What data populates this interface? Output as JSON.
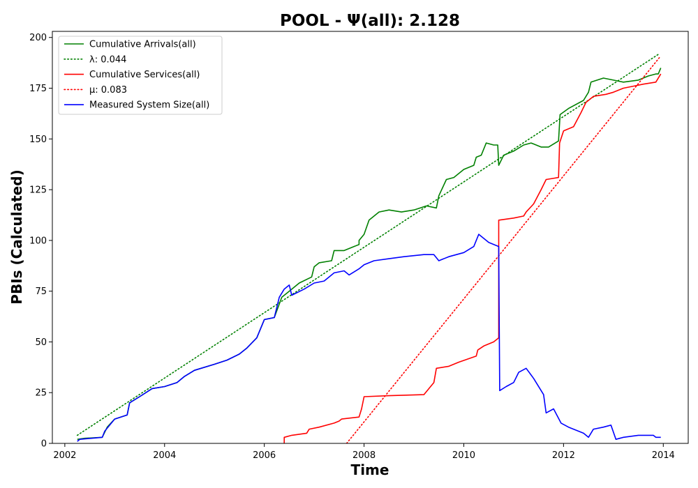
{
  "chart_data": {
    "type": "line",
    "title": "POOL -  Ψ(all): 2.128",
    "xlabel": "Time",
    "ylabel": "PBIs (Calculated)",
    "xlim": [
      2001.75,
      2014.5
    ],
    "ylim": [
      0,
      203
    ],
    "xticks": [
      "2002",
      "2004",
      "2006",
      "2008",
      "2010",
      "2012",
      "2014"
    ],
    "yticks": [
      "0",
      "25",
      "50",
      "75",
      "100",
      "125",
      "150",
      "175",
      "200"
    ],
    "grid": false,
    "legend_position": "top-left",
    "series": [
      {
        "name": "Cumulative Arrivals(all)",
        "style": "solid",
        "color": "#008000",
        "points": [
          [
            2002.25,
            2
          ],
          [
            2002.4,
            2.5
          ],
          [
            2002.75,
            3
          ],
          [
            2002.85,
            8
          ],
          [
            2003.0,
            12
          ],
          [
            2003.25,
            14
          ],
          [
            2003.3,
            20
          ],
          [
            2003.5,
            23
          ],
          [
            2003.75,
            27
          ],
          [
            2004.0,
            28
          ],
          [
            2004.25,
            30
          ],
          [
            2004.4,
            33
          ],
          [
            2004.6,
            36
          ],
          [
            2005.0,
            39
          ],
          [
            2005.25,
            41
          ],
          [
            2005.5,
            44
          ],
          [
            2005.65,
            47
          ],
          [
            2005.85,
            52
          ],
          [
            2006.0,
            61
          ],
          [
            2006.2,
            62
          ],
          [
            2006.35,
            72
          ],
          [
            2006.5,
            75
          ],
          [
            2006.7,
            79
          ],
          [
            2006.95,
            82
          ],
          [
            2007.0,
            87
          ],
          [
            2007.1,
            89
          ],
          [
            2007.35,
            90
          ],
          [
            2007.4,
            95
          ],
          [
            2007.6,
            95
          ],
          [
            2007.9,
            98
          ],
          [
            2007.9,
            100
          ],
          [
            2008.0,
            103
          ],
          [
            2008.1,
            110
          ],
          [
            2008.3,
            114
          ],
          [
            2008.5,
            115
          ],
          [
            2008.75,
            114
          ],
          [
            2009.0,
            115
          ],
          [
            2009.25,
            117
          ],
          [
            2009.45,
            116
          ],
          [
            2009.5,
            122
          ],
          [
            2009.65,
            130
          ],
          [
            2009.8,
            131
          ],
          [
            2010.0,
            135
          ],
          [
            2010.2,
            137
          ],
          [
            2010.25,
            141
          ],
          [
            2010.35,
            142
          ],
          [
            2010.45,
            148
          ],
          [
            2010.6,
            147
          ],
          [
            2010.68,
            147
          ],
          [
            2010.7,
            137
          ],
          [
            2010.8,
            142
          ],
          [
            2011.0,
            144
          ],
          [
            2011.2,
            147
          ],
          [
            2011.35,
            148
          ],
          [
            2011.55,
            146
          ],
          [
            2011.7,
            146
          ],
          [
            2011.9,
            149
          ],
          [
            2011.93,
            162
          ],
          [
            2012.1,
            165
          ],
          [
            2012.4,
            169
          ],
          [
            2012.5,
            173
          ],
          [
            2012.55,
            178
          ],
          [
            2012.8,
            180
          ],
          [
            2013.0,
            179
          ],
          [
            2013.2,
            178
          ],
          [
            2013.5,
            179
          ],
          [
            2013.7,
            181
          ],
          [
            2013.85,
            182
          ],
          [
            2013.9,
            182
          ],
          [
            2013.95,
            185
          ]
        ]
      },
      {
        "name": "λ: 0.044",
        "style": "dotted",
        "color": "#008000",
        "points": [
          [
            2002.25,
            4
          ],
          [
            2013.92,
            192
          ]
        ]
      },
      {
        "name": "Cumulative Services(all)",
        "style": "solid",
        "color": "#ff0000",
        "points": [
          [
            2006.4,
            0
          ],
          [
            2006.4,
            3
          ],
          [
            2006.55,
            4
          ],
          [
            2006.85,
            5
          ],
          [
            2006.9,
            7
          ],
          [
            2007.1,
            8
          ],
          [
            2007.4,
            10
          ],
          [
            2007.5,
            11
          ],
          [
            2007.55,
            12
          ],
          [
            2007.9,
            13
          ],
          [
            2007.95,
            17
          ],
          [
            2008.0,
            23
          ],
          [
            2008.5,
            23.5
          ],
          [
            2009.2,
            24
          ],
          [
            2009.3,
            27
          ],
          [
            2009.4,
            30
          ],
          [
            2009.45,
            37
          ],
          [
            2009.7,
            38
          ],
          [
            2009.9,
            40
          ],
          [
            2010.25,
            43
          ],
          [
            2010.28,
            46
          ],
          [
            2010.4,
            48
          ],
          [
            2010.6,
            50
          ],
          [
            2010.7,
            52
          ],
          [
            2010.7,
            110
          ],
          [
            2011.0,
            111
          ],
          [
            2011.2,
            112
          ],
          [
            2011.25,
            114
          ],
          [
            2011.4,
            118
          ],
          [
            2011.55,
            125
          ],
          [
            2011.65,
            130
          ],
          [
            2011.9,
            131
          ],
          [
            2011.92,
            148
          ],
          [
            2012.0,
            154
          ],
          [
            2012.2,
            156
          ],
          [
            2012.35,
            163
          ],
          [
            2012.45,
            168
          ],
          [
            2012.6,
            171
          ],
          [
            2012.85,
            172
          ],
          [
            2013.0,
            173
          ],
          [
            2013.2,
            175
          ],
          [
            2013.4,
            176
          ],
          [
            2013.6,
            177
          ],
          [
            2013.85,
            178
          ],
          [
            2013.95,
            182
          ]
        ]
      },
      {
        "name": "μ: 0.083",
        "style": "dotted",
        "color": "#ff0000",
        "points": [
          [
            2007.65,
            0
          ],
          [
            2013.92,
            190
          ]
        ]
      },
      {
        "name": "Measured System Size(all)",
        "style": "solid",
        "color": "#0000ff",
        "points": [
          [
            2002.25,
            1
          ],
          [
            2002.3,
            2
          ],
          [
            2002.75,
            3
          ],
          [
            2002.8,
            6
          ],
          [
            2002.9,
            9
          ],
          [
            2003.0,
            12
          ],
          [
            2003.25,
            14
          ],
          [
            2003.3,
            20
          ],
          [
            2003.5,
            23
          ],
          [
            2003.75,
            27
          ],
          [
            2004.0,
            28
          ],
          [
            2004.25,
            30
          ],
          [
            2004.4,
            33
          ],
          [
            2004.6,
            36
          ],
          [
            2005.0,
            39
          ],
          [
            2005.25,
            41
          ],
          [
            2005.5,
            44
          ],
          [
            2005.65,
            47
          ],
          [
            2005.85,
            52
          ],
          [
            2006.0,
            61
          ],
          [
            2006.2,
            62
          ],
          [
            2006.3,
            72
          ],
          [
            2006.4,
            76
          ],
          [
            2006.5,
            78
          ],
          [
            2006.55,
            73
          ],
          [
            2006.8,
            76
          ],
          [
            2007.0,
            79
          ],
          [
            2007.2,
            80
          ],
          [
            2007.4,
            84
          ],
          [
            2007.6,
            85
          ],
          [
            2007.7,
            83
          ],
          [
            2007.9,
            86
          ],
          [
            2008.0,
            88
          ],
          [
            2008.2,
            90
          ],
          [
            2008.5,
            91
          ],
          [
            2008.8,
            92
          ],
          [
            2009.2,
            93
          ],
          [
            2009.4,
            93
          ],
          [
            2009.5,
            90
          ],
          [
            2009.7,
            92
          ],
          [
            2010.0,
            94
          ],
          [
            2010.2,
            97
          ],
          [
            2010.3,
            103
          ],
          [
            2010.5,
            99
          ],
          [
            2010.7,
            97
          ],
          [
            2010.72,
            26
          ],
          [
            2010.85,
            28
          ],
          [
            2011.0,
            30
          ],
          [
            2011.1,
            35
          ],
          [
            2011.25,
            37
          ],
          [
            2011.4,
            32
          ],
          [
            2011.6,
            24
          ],
          [
            2011.65,
            15
          ],
          [
            2011.8,
            17
          ],
          [
            2011.95,
            10
          ],
          [
            2012.1,
            8
          ],
          [
            2012.2,
            7
          ],
          [
            2012.4,
            5
          ],
          [
            2012.5,
            3
          ],
          [
            2012.6,
            7
          ],
          [
            2012.8,
            8
          ],
          [
            2012.95,
            9
          ],
          [
            2013.05,
            2
          ],
          [
            2013.2,
            3
          ],
          [
            2013.5,
            4
          ],
          [
            2013.8,
            4
          ],
          [
            2013.85,
            3
          ],
          [
            2013.95,
            3
          ]
        ]
      }
    ]
  }
}
